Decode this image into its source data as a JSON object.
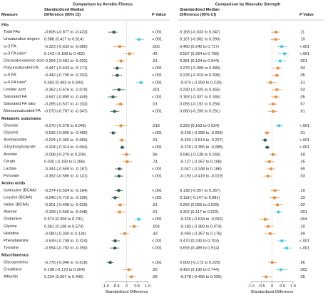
{
  "measure_header": "Measure",
  "groups": [
    {
      "name": "FAs",
      "measures": [
        {
          "name": "Total FAs"
        },
        {
          "name": "Unsaturation degree"
        },
        {
          "name": "ω-3 FA"
        },
        {
          "name": "ω-3 FA ratio",
          "footnote": "a"
        },
        {
          "name": "Docosahexaenoic acid"
        },
        {
          "name": "Polyunsaturated FA"
        },
        {
          "name": "ω-6 FA"
        },
        {
          "name": "ω-6 FA ratio",
          "footnote": "b"
        },
        {
          "name": "Linoleic acid"
        },
        {
          "name": "Saturated FA"
        },
        {
          "name": "Saturated FA ratio"
        },
        {
          "name": "Monounsaturated FA"
        }
      ]
    },
    {
      "name": "Metabolic substrates",
      "measures": [
        {
          "name": "Glucose"
        },
        {
          "name": "Glycerol"
        },
        {
          "name": "Acetoacetate"
        },
        {
          "name": "3-hydroxybutyrate"
        },
        {
          "name": "Acetate"
        },
        {
          "name": "Citrate"
        },
        {
          "name": "Lactate"
        },
        {
          "name": "Pyruvate"
        }
      ]
    },
    {
      "name": "Amino acids",
      "measures": [
        {
          "name": "Isoleucine (BCAA)"
        },
        {
          "name": "Leucine (BCAA)"
        },
        {
          "name": "Valine (BCAA)"
        },
        {
          "name": "Alanine"
        },
        {
          "name": "Glutamine"
        },
        {
          "name": "Glycine"
        },
        {
          "name": "Histidine"
        },
        {
          "name": "Phenylalanine"
        },
        {
          "name": "Tyrosine"
        }
      ]
    },
    {
      "name": "Miscellaneous",
      "measures": [
        {
          "name": "Glycoproteins"
        },
        {
          "name": "Creatinine"
        },
        {
          "name": "Albumin"
        }
      ]
    }
  ],
  "chart_data": [
    {
      "type": "forest",
      "title": "Comparison by Aerobic Fitness",
      "headers": [
        "Standardized Median Difference (95% CI)",
        "P Value"
      ],
      "xlabel": "Standardized Difference",
      "xlim": [
        -1.0,
        1.0
      ],
      "xticks": [
        {
          "value": -1.0,
          "label": "-1.0"
        },
        -0.5,
        0,
        0.5,
        {
          "value": 1.0,
          "label": "1.0"
        }
      ],
      "rows": [
        {
          "values": [
            -0.605,
            -0.877,
            -0.423
          ],
          "value_label": "-0.605 (-0.877 to -0.423)",
          "p": "<.001",
          "color": "#2f5b52"
        },
        {
          "values": [
            0.588,
            0.417,
            0.814
          ],
          "value_label": "0.588 (0.417 to 0.814)",
          "p": "<.001",
          "color": "#4fc6dc"
        },
        {
          "values": [
            -0.323,
            -0.632,
            -0.08
          ],
          "value_label": "-0.323 (-0.632 to -0.080)",
          "p": ".003",
          "color": "#e0914a"
        },
        {
          "values": [
            0.143,
            -0.158,
            0.402
          ],
          "value_label": "0.143 (-0.158 to 0.402)",
          "p": ".42",
          "color": "#e0914a"
        },
        {
          "values": [
            -0.264,
            -0.481,
            -0.033
          ],
          "value_label": "-0.264 (-0.481 to -0.033)",
          "p": ".01",
          "color": "#e0914a"
        },
        {
          "values": [
            -0.447,
            -0.643,
            -0.171
          ],
          "value_label": "-0.447 (-0.643 to -0.171)",
          "p": "<.001",
          "color": "#2f5b52"
        },
        {
          "values": [
            -0.442,
            -0.7,
            -0.202
          ],
          "value_label": "-0.442 (-0.700 to -0.202)",
          "p": "<.001",
          "color": "#2f5b52"
        },
        {
          "values": [
            0.683,
            0.463,
            0.844
          ],
          "value_label": "0.683 (0.463 to 0.844)",
          "p": "<.001",
          "color": "#4fc6dc"
        },
        {
          "values": [
            -0.362,
            -0.676,
            -0.079
          ],
          "value_label": "-0.362 (-0.676 to -0.079)",
          "p": ".001",
          "color": "#2f5b52"
        },
        {
          "values": [
            -0.647,
            -0.89,
            -0.449
          ],
          "value_label": "-0.647 (-0.890 to -0.449)",
          "p": "<.001",
          "color": "#2f5b52"
        },
        {
          "values": [
            -0.285,
            -0.537,
            -0.103
          ],
          "value_label": "-0.285 (-0.537 to -0.103)",
          "p": ".01",
          "color": "#e0914a"
        },
        {
          "values": [
            -0.57,
            -0.787,
            -0.347
          ],
          "value_label": "-0.570 (-0.787 to -0.347)",
          "p": "<.001",
          "color": "#2f5b52"
        },
        {
          "values": [
            -0.27,
            -0.578,
            0.045
          ],
          "value_label": "-0.270 (-0.578 to 0.045)",
          "p": ".018",
          "color": "#e0914a"
        },
        {
          "values": [
            -0.636,
            -0.806,
            -0.48
          ],
          "value_label": "-0.636 (-0.806 to -0.480)",
          "p": "<.001",
          "color": "#2f5b52"
        },
        {
          "values": [
            -0.224,
            -0.365,
            -0.06
          ],
          "value_label": "-0.224 (-0.365 to -0.060)",
          "p": ".01",
          "color": "#e0914a"
        },
        {
          "values": [
            -0.204,
            -0.314,
            -0.094
          ],
          "value_label": "-0.204 (-0.314 to -0.094)",
          "p": "<.001",
          "color": "#2f5b52"
        },
        {
          "values": [
            -0.008,
            -0.27,
            0.206
          ],
          "value_label": "-0.008 (-0.270 to 0.206)",
          "p": ".96",
          "color": "#e0914a"
        },
        {
          "values": [
            0.03,
            -0.19,
            0.268
          ],
          "value_label": "0.030 (-0.190 to 0.268)",
          "p": ".74",
          "color": "#e0914a"
        },
        {
          "values": [
            -0.344,
            -0.559,
            -0.187
          ],
          "value_label": "-0.344 (-0.559 to -0.187)",
          "p": "<.001",
          "color": "#2f5b52"
        },
        {
          "values": [
            -0.362,
            -0.586,
            -0.141
          ],
          "value_label": "-0.362 (-0.586 to -0.141)",
          "p": "<.001",
          "color": "#2f5b52"
        },
        {
          "values": [
            -0.374,
            -0.554,
            -0.164
          ],
          "value_label": "-0.374 (-0.554 to -0.164)",
          "p": "<.001",
          "color": "#2f5b52"
        },
        {
          "values": [
            -0.546,
            -0.716,
            -0.336
          ],
          "value_label": "-0.546 (-0.716 to -0.336)",
          "p": "<.001",
          "color": "#2f5b52"
        },
        {
          "values": [
            -0.301,
            -0.498,
            -0.039
          ],
          "value_label": "-0.301 (-0.498 to -0.039)",
          "p": ".01",
          "color": "#e0914a"
        },
        {
          "values": [
            -0.328,
            -0.566,
            -0.048
          ],
          "value_label": "-0.328 (-0.566 to -0.048)",
          "p": ".01",
          "color": "#e0914a"
        },
        {
          "values": [
            0.574,
            0.358,
            0.791
          ],
          "value_label": "0.574 (0.358 to 0.791)",
          "p": "<.001",
          "color": "#4fc6dc"
        },
        {
          "values": [
            0.361,
            0.108,
            0.574
          ],
          "value_label": "0.361 (0.108 to 0.574)",
          "p": ".004",
          "color": "#e0914a"
        },
        {
          "values": [
            -0.08,
            -0.33,
            0.134
          ],
          "value_label": "-0.080 (-0.330 to 0.134)",
          "p": ".43",
          "color": "#e0914a"
        },
        {
          "values": [
            -0.539,
            -0.708,
            -0.324
          ],
          "value_label": "-0.539 (-0.708 to -0.324)",
          "p": "<.001",
          "color": "#2f5b52"
        },
        {
          "values": [
            -0.554,
            -0.783,
            -0.35
          ],
          "value_label": "-0.554 (-0.783 to -0.350)",
          "p": "<.001",
          "color": "#2f5b52"
        },
        {
          "values": [
            -0.776,
            -0.946,
            -0.616
          ],
          "value_label": "-0.776 (-0.946 to -0.616)",
          "p": "<.001",
          "color": "#2f5b52"
        },
        {
          "values": [
            0.108,
            -0.173,
            0.304
          ],
          "value_label": "0.108 (-0.173 to 0.304)",
          "p": ".50",
          "color": "#e0914a"
        },
        {
          "values": [
            0.234,
            0.007,
            0.44
          ],
          "value_label": "0.234 (0.007 to 0.440)",
          "p": ".06",
          "color": "#e0914a"
        }
      ]
    },
    {
      "type": "forest",
      "title": "Comparison by Muscular Strength",
      "headers": [
        "Standardized Median Difference (95% CI)",
        "P Value"
      ],
      "xlabel": "Standardized Difference",
      "xlim": [
        -1.0,
        1.0
      ],
      "xticks": [
        {
          "value": -1.0,
          "label": "-1.0"
        },
        -0.5,
        0,
        0.5,
        {
          "value": 1.0,
          "label": "1.0"
        }
      ],
      "rows": [
        {
          "values": [
            0.183,
            -0.033,
            0.347
          ],
          "value_label": "0.183 (-0.033 to 0.347)",
          "p": ".11",
          "color": "#e0914a"
        },
        {
          "values": [
            0.167,
            -0.062,
            0.393
          ],
          "value_label": "0.167 (-0.062 to 0.393)",
          "p": ".10",
          "color": "#e0914a"
        },
        {
          "values": [
            0.46,
            0.24,
            0.717
          ],
          "value_label": "0.460 (0.240 to 0.717)",
          "p": "<.001",
          "color": "#4fc6dc"
        },
        {
          "values": [
            0.597,
            0.294,
            0.798
          ],
          "value_label": "0.597 (0.294 to 0.798)",
          "p": "<.001",
          "color": "#4fc6dc"
        },
        {
          "values": [
            0.381,
            0.124,
            0.644
          ],
          "value_label": "0.381 (0.124 to 0.644)",
          "p": ".001",
          "color": "#4fc6dc"
        },
        {
          "values": [
            0.279,
            -0.008,
            0.48
          ],
          "value_label": "0.279 (-0.008 to 0.480)",
          "p": ".04",
          "color": "#e0914a"
        },
        {
          "values": [
            0.228,
            -0.019,
            0.399
          ],
          "value_label": "0.228 (-0.019 to 0.399)",
          "p": ".05",
          "color": "#e0914a"
        },
        {
          "values": [
            -0.074,
            -0.259,
            0.219
          ],
          "value_label": "-0.074 (-0.259 to 0.219)",
          "p": ".51",
          "color": "#e0914a"
        },
        {
          "values": [
            0.23,
            -0.025,
            0.455
          ],
          "value_label": "0.230 (-0.025 to 0.455)",
          "p": ".03",
          "color": "#e0914a"
        },
        {
          "values": [
            0.183,
            -0.037,
            0.346
          ],
          "value_label": "0.183 (-0.037 to 0.346)",
          "p": ".05",
          "color": "#e0914a"
        },
        {
          "values": [
            0.055,
            -0.192,
            0.256
          ],
          "value_label": "0.055 (-0.192 to 0.256)",
          "p": ".67",
          "color": "#e0914a"
        },
        {
          "values": [
            0.06,
            -0.2,
            0.261
          ],
          "value_label": "0.060 (-0.200 to 0.261)",
          "p": ".61",
          "color": "#e0914a"
        },
        {
          "values": [
            0.333,
            0.163,
            0.534
          ],
          "value_label": "0.333 (0.163 to 0.534)",
          "p": "<.001",
          "color": "#4fc6dc"
        },
        {
          "values": [
            -0.236,
            -0.398,
            -0.056
          ],
          "value_label": "-0.236 (-0.398 to -0.056)",
          "p": ".01",
          "color": "#e0914a"
        },
        {
          "values": [
            -0.332,
            -0.514,
            -0.207
          ],
          "value_label": "-0.332 (-0.514 to -0.207)",
          "p": "<.001",
          "color": "#2f5b52"
        },
        {
          "values": [
            -0.229,
            -0.355,
            -0.088
          ],
          "value_label": "-0.229 (-0.355 to -0.088)",
          "p": "<.001",
          "color": "#2f5b52"
        },
        {
          "values": [
            0.046,
            -0.138,
            0.24
          ],
          "value_label": "0.046 (-0.138 to 0.240)",
          "p": ".59",
          "color": "#e0914a"
        },
        {
          "values": [
            -0.127,
            -0.357,
            0.108
          ],
          "value_label": "-0.127 (-0.357 to 0.108)",
          "p": ".25",
          "color": "#e0914a"
        },
        {
          "values": [
            -0.047,
            -0.248,
            0.166
          ],
          "value_label": "-0.047 (-0.248 to 0.166)",
          "p": ".69",
          "color": "#e0914a"
        },
        {
          "values": [
            -0.193,
            -0.418,
            -0.019
          ],
          "value_label": "-0.193 (-0.418 to -0.019)",
          "p": ".03",
          "color": "#e0914a"
        },
        {
          "values": [
            0.138,
            -0.057,
            0.367
          ],
          "value_label": "0.138 (-0.057 to 0.367)",
          "p": ".10",
          "color": "#e0914a"
        },
        {
          "values": [
            0.118,
            -0.147,
            0.381
          ],
          "value_label": "0.118 (-0.147 to 0.381)",
          "p": ".33",
          "color": "#e0914a"
        },
        {
          "values": [
            0.256,
            0.055,
            0.529
          ],
          "value_label": "0.256 (0.055 to 0.529)",
          "p": ".02",
          "color": "#e0914a"
        },
        {
          "values": [
            0.302,
            0.117,
            0.522
          ],
          "value_label": "0.302 (0.117 to 0.522)",
          "p": ".001",
          "color": "#4fc6dc"
        },
        {
          "values": [
            -0.325,
            -0.634,
            -0.092
          ],
          "value_label": "-0.325 (-0.634 to -0.092)",
          "p": ".004",
          "color": "#e0914a"
        },
        {
          "values": [
            -0.183,
            -0.383,
            0.074
          ],
          "value_label": "-0.183 (-0.383 to 0.074)",
          "p": ".10",
          "color": "#e0914a"
        },
        {
          "values": [
            -0.093,
            -0.367,
            0.176
          ],
          "value_label": "-0.093 (-0.367 to 0.176)",
          "p": ".49",
          "color": "#e0914a"
        },
        {
          "values": [
            0.47,
            0.24,
            0.703
          ],
          "value_label": "0.470 (0.240 to 0.703)",
          "p": "<.001",
          "color": "#4fc6dc"
        },
        {
          "values": [
            0.693,
            0.489,
            0.914
          ],
          "value_label": "0.693 (0.489 to 0.914)",
          "p": "<.001",
          "color": "#4fc6dc"
        },
        {
          "values": [
            0.009,
            -0.172,
            0.229
          ],
          "value_label": "0.009 (-0.172 to 0.229)",
          "p": ".96",
          "color": "#e0914a"
        },
        {
          "values": [
            0.42,
            0.19,
            0.744
          ],
          "value_label": "0.420 (0.190 to 0.744)",
          "p": ".002",
          "color": "#4fc6dc"
        },
        {
          "values": [
            -0.278,
            -0.496,
            0.025
          ],
          "value_label": "-0.278 (-0.496 to 0.025)",
          "p": ".05",
          "color": "#e0914a"
        }
      ]
    }
  ]
}
